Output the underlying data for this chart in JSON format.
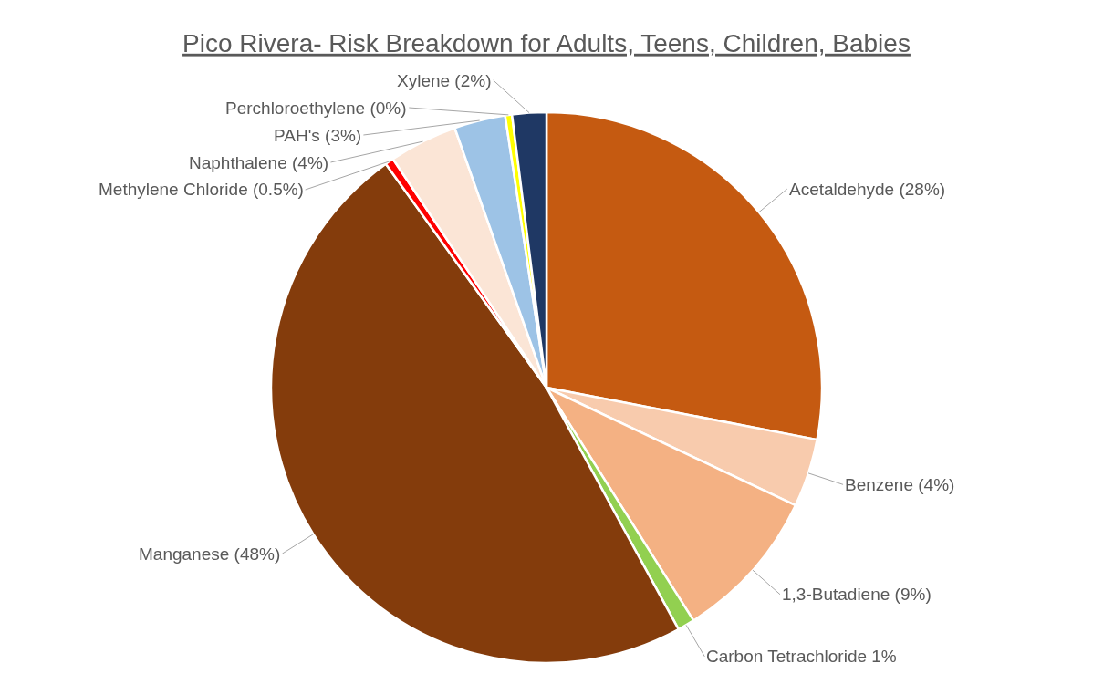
{
  "chart_data": {
    "type": "pie",
    "title": "Pico Rivera- Risk Breakdown for Adults, Teens, Children, Babies",
    "categories": [
      "Acetaldehyde (28%)",
      "Benzene (4%)",
      "1,3-Butadiene (9%)",
      "Carbon Tetrachloride 1%",
      "Manganese (48%)",
      "Methylene Chloride (0.5%)",
      "Naphthalene (4%)",
      "PAH's (3%)",
      "Perchloroethylene (0%)",
      "Xylene (2%)"
    ],
    "values": [
      28,
      4,
      9,
      1,
      48,
      0.5,
      4,
      3,
      0.4,
      2
    ],
    "colors": [
      "#c55a11",
      "#f8cbad",
      "#f4b183",
      "#92d050",
      "#843c0c",
      "#ff0000",
      "#fbe5d6",
      "#9dc3e6",
      "#ffff00",
      "#1f3864"
    ],
    "legend": false
  }
}
